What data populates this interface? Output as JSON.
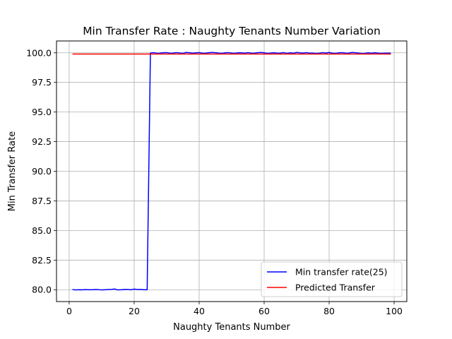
{
  "chart_data": {
    "type": "line",
    "title": "Min Transfer Rate : Naughty Tenants Number Variation",
    "xlabel": "Naughty Tenants Number",
    "ylabel": "Min Transfer Rate",
    "xlim": [
      -3.9,
      103.9
    ],
    "ylim": [
      79.0,
      101.0
    ],
    "xticks": [
      0,
      20,
      40,
      60,
      80,
      100
    ],
    "yticks": [
      80.0,
      82.5,
      85.0,
      87.5,
      90.0,
      92.5,
      95.0,
      97.5,
      100.0
    ],
    "grid": true,
    "legend_position": "lower-right",
    "series": [
      {
        "name": "Min transfer rate(25)",
        "color": "#0000ff",
        "x": [
          1,
          2,
          3,
          4,
          5,
          6,
          7,
          8,
          9,
          10,
          11,
          12,
          13,
          14,
          15,
          16,
          17,
          18,
          19,
          20,
          21,
          22,
          23,
          24,
          25,
          26,
          27,
          28,
          29,
          30,
          31,
          32,
          33,
          34,
          35,
          36,
          37,
          38,
          39,
          40,
          41,
          42,
          43,
          44,
          45,
          46,
          47,
          48,
          49,
          50,
          51,
          52,
          53,
          54,
          55,
          56,
          57,
          58,
          59,
          60,
          61,
          62,
          63,
          64,
          65,
          66,
          67,
          68,
          69,
          70,
          71,
          72,
          73,
          74,
          75,
          76,
          77,
          78,
          79,
          80,
          81,
          82,
          83,
          84,
          85,
          86,
          87,
          88,
          89,
          90,
          91,
          92,
          93,
          94,
          95,
          96,
          97,
          98,
          99
        ],
        "y": [
          80.02,
          79.98,
          80.0,
          79.99,
          80.01,
          80.0,
          80.0,
          80.02,
          80.01,
          79.98,
          80.0,
          80.02,
          80.03,
          80.06,
          79.98,
          80.0,
          80.03,
          80.02,
          80.0,
          80.05,
          80.02,
          80.03,
          80.0,
          80.0,
          99.98,
          100.02,
          99.96,
          99.98,
          100.01,
          100.02,
          99.97,
          99.98,
          100.02,
          99.99,
          99.96,
          100.03,
          100.01,
          99.97,
          100.0,
          100.02,
          99.98,
          99.97,
          100.01,
          100.03,
          100.01,
          99.98,
          99.96,
          100.0,
          100.02,
          99.98,
          99.96,
          100.01,
          100.0,
          99.97,
          100.02,
          99.98,
          99.97,
          100.01,
          100.03,
          100.0,
          99.96,
          99.98,
          100.01,
          99.97,
          99.98,
          100.02,
          99.96,
          100.0,
          99.97,
          100.03,
          100.0,
          99.98,
          100.02,
          99.97,
          99.98,
          99.95,
          99.97,
          100.02,
          99.98,
          100.03,
          99.97,
          99.96,
          100.0,
          100.02,
          99.98,
          99.97,
          100.03,
          100.01,
          99.98,
          99.95,
          99.96,
          100.0,
          99.97,
          100.01,
          99.98,
          99.96,
          99.97,
          99.98,
          99.97
        ]
      },
      {
        "name": "Predicted Transfer",
        "color": "#ff0000",
        "x": [
          1,
          99
        ],
        "y": [
          99.9,
          99.9
        ]
      }
    ]
  }
}
